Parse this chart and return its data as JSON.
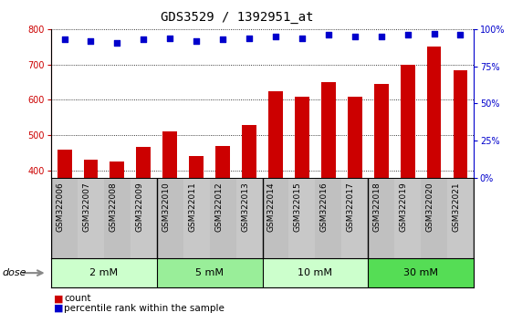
{
  "title": "GDS3529 / 1392951_at",
  "categories": [
    "GSM322006",
    "GSM322007",
    "GSM322008",
    "GSM322009",
    "GSM322010",
    "GSM322011",
    "GSM322012",
    "GSM322013",
    "GSM322014",
    "GSM322015",
    "GSM322016",
    "GSM322017",
    "GSM322018",
    "GSM322019",
    "GSM322020",
    "GSM322021"
  ],
  "bar_values": [
    458,
    432,
    425,
    468,
    510,
    440,
    470,
    530,
    625,
    610,
    650,
    608,
    645,
    700,
    750,
    683
  ],
  "percentile_values": [
    93,
    92,
    91,
    93,
    94,
    92,
    93,
    94,
    95,
    94,
    96,
    95,
    95,
    96,
    97,
    96
  ],
  "bar_color": "#cc0000",
  "percentile_color": "#0000cc",
  "ylim_left": [
    380,
    800
  ],
  "ylim_right": [
    0,
    100
  ],
  "yticks_left": [
    400,
    500,
    600,
    700,
    800
  ],
  "yticks_right": [
    0,
    25,
    50,
    75,
    100
  ],
  "dose_groups": [
    {
      "label": "2 mM",
      "start": 0,
      "end": 4,
      "color": "#ccffcc"
    },
    {
      "label": "5 mM",
      "start": 4,
      "end": 8,
      "color": "#99ee99"
    },
    {
      "label": "10 mM",
      "start": 8,
      "end": 12,
      "color": "#ccffcc"
    },
    {
      "label": "30 mM",
      "start": 12,
      "end": 16,
      "color": "#55dd55"
    }
  ],
  "xlabel_area_color": "#c8c8c8",
  "dose_label": "dose",
  "legend_count_label": "count",
  "legend_percentile_label": "percentile rank within the sample",
  "background_color": "#ffffff",
  "title_fontsize": 10,
  "tick_fontsize": 7,
  "label_fontsize": 6.5,
  "dose_fontsize": 8
}
